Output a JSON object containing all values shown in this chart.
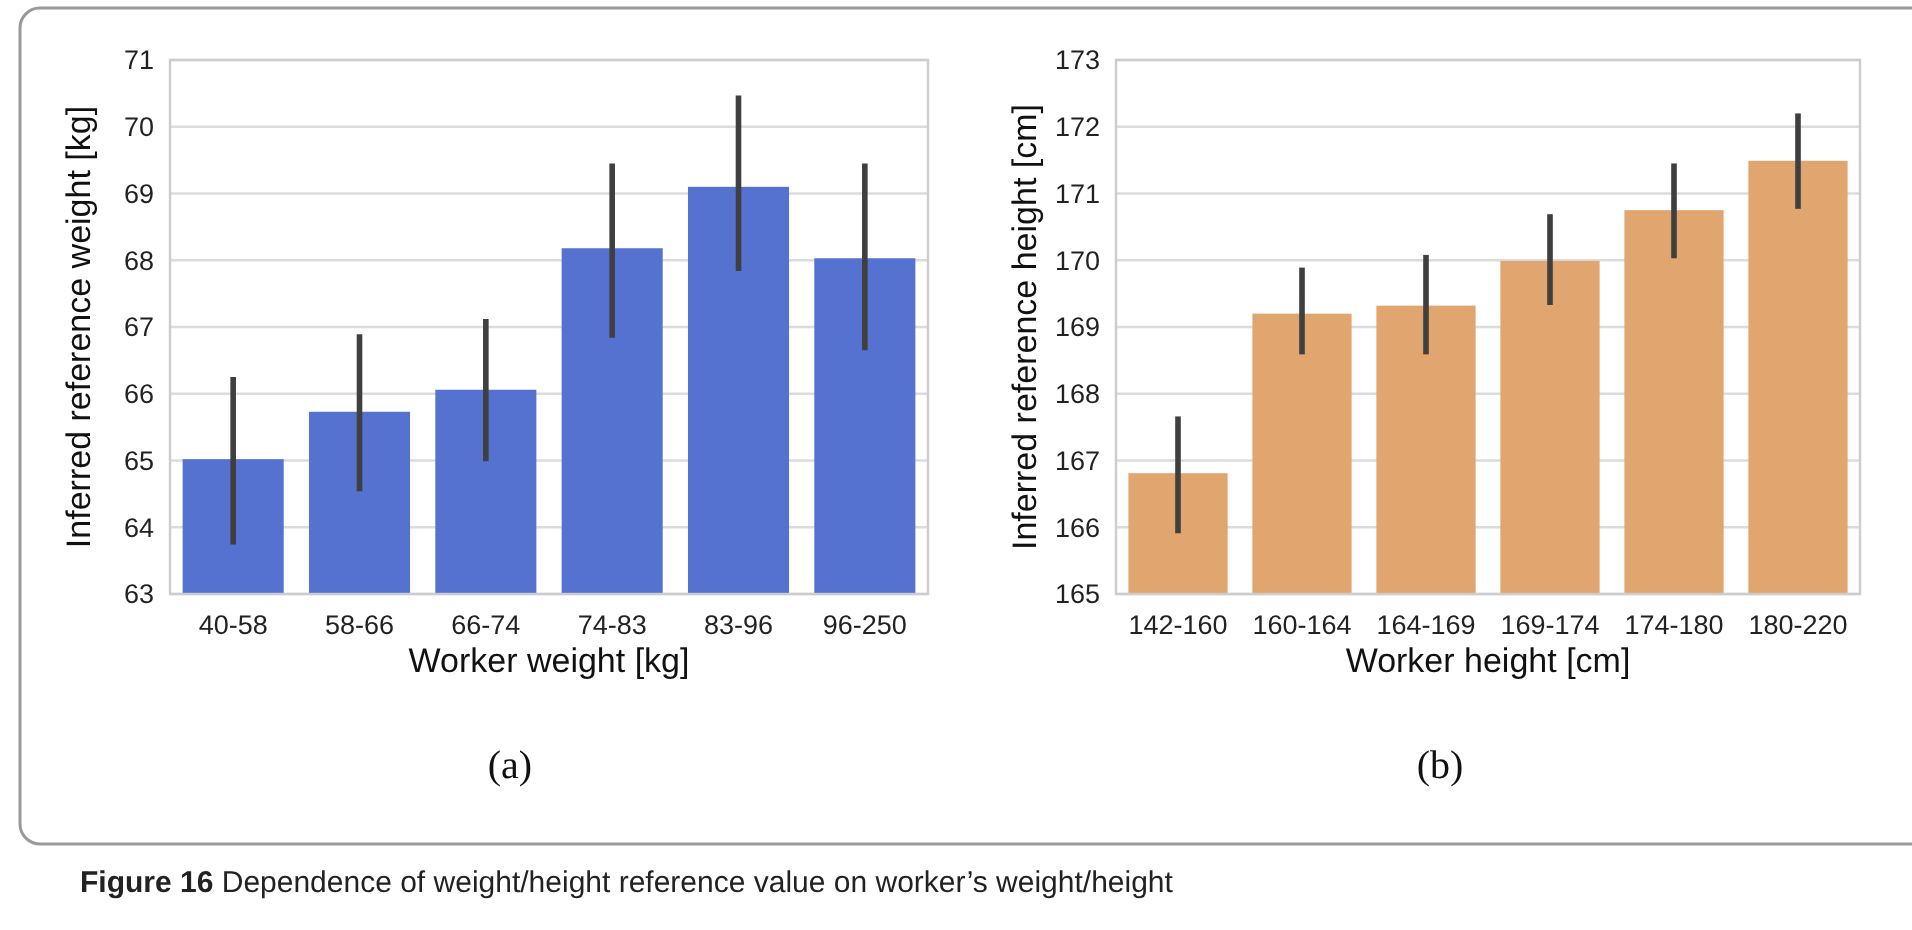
{
  "chart_data": [
    {
      "type": "bar",
      "xlabel": "Worker weight [kg]",
      "ylabel": "Inferred reference weight [kg]",
      "categories": [
        "40-58",
        "58-66",
        "66-74",
        "74-83",
        "83-96",
        "96-250"
      ],
      "values": [
        65.02,
        65.73,
        66.06,
        68.18,
        69.1,
        68.03
      ],
      "color": "#5572d0",
      "errors": [
        [
          63.74,
          66.25
        ],
        [
          64.54,
          66.89
        ],
        [
          64.99,
          67.12
        ],
        [
          66.84,
          69.45
        ],
        [
          67.84,
          70.47
        ],
        [
          66.65,
          69.45
        ]
      ],
      "ylim": [
        63,
        71
      ],
      "yticks": [
        63,
        64,
        65,
        66,
        67,
        68,
        69,
        70,
        71
      ],
      "grid": "y",
      "annotations": [
        "(a)"
      ]
    },
    {
      "type": "bar",
      "xlabel": "Worker height [cm]",
      "ylabel": "Inferred reference height [cm]",
      "categories": [
        "142-160",
        "160-164",
        "164-169",
        "169-174",
        "174-180",
        "180-220"
      ],
      "values": [
        166.81,
        169.2,
        169.32,
        169.99,
        170.75,
        171.49
      ],
      "color": "#e1a56f",
      "errors": [
        [
          165.91,
          167.66
        ],
        [
          168.59,
          169.89
        ],
        [
          168.59,
          170.08
        ],
        [
          169.33,
          170.69
        ],
        [
          170.03,
          171.45
        ],
        [
          170.77,
          172.2
        ]
      ],
      "ylim": [
        165,
        173
      ],
      "yticks": [
        165,
        166,
        167,
        168,
        169,
        170,
        171,
        172,
        173
      ],
      "grid": "y",
      "annotations": [
        "(b)",
        "Figure 16  Dependence of weight/height reference value on worker’s weight/height"
      ]
    }
  ]
}
